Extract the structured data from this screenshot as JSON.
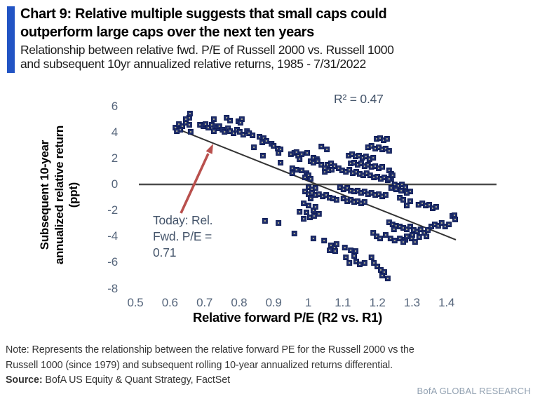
{
  "header": {
    "title_line1": "Chart 9: Relative multiple suggests that small caps could",
    "title_line2": "outperform large caps over the next ten years",
    "subtitle_line1": "Relationship between relative fwd. P/E of Russell 2000 vs. Russell 1000",
    "subtitle_line2": "and subsequent 10yr annualized relative returns, 1985 - 7/31/2022",
    "accent_color": "#2254c4"
  },
  "chart_data": {
    "type": "scatter",
    "xlabel": "Relative forward P/E (R2 vs. R1)",
    "ylabel": "Subsequent 10-year annualized relative return (ppt)",
    "ylabel_lines": [
      "Subsequent 10-year",
      "annualized relative return",
      "(ppt)"
    ],
    "x_ticks": [
      0.5,
      0.6,
      0.7,
      0.8,
      0.9,
      1,
      1.1,
      1.2,
      1.3,
      1.4
    ],
    "x_tick_labels": [
      "0.5",
      "0.6",
      "0.7",
      "0.8",
      "0.9",
      "1",
      "1.1",
      "1.2",
      "1.3",
      "1.4"
    ],
    "y_ticks": [
      6,
      4,
      2,
      0,
      -2,
      -4,
      -6,
      -8
    ],
    "xlim": [
      0.49,
      1.55
    ],
    "ylim": [
      -8.3,
      6.6
    ],
    "grid": false,
    "zero_line": true,
    "r_squared": 0.47,
    "r_squared_label": "R² = 0.47",
    "annotation": {
      "lines": [
        "Today: Rel.",
        "Fwd. P/E =",
        "0.71"
      ],
      "value": 0.71,
      "arrow_color": "#b9504d"
    },
    "trendline": {
      "x1": 0.612,
      "y1": 4.36,
      "x2": 1.427,
      "y2": -4.25
    },
    "marker": {
      "shape": "square",
      "color": "#1f2e6e",
      "edge_color": "#0f1d55"
    },
    "points": [
      [
        0.616,
        4.36
      ],
      [
        0.626,
        4.63
      ],
      [
        0.636,
        4.47
      ],
      [
        0.646,
        4.74
      ],
      [
        0.656,
        4.58
      ],
      [
        0.63,
        4.2
      ],
      [
        0.62,
        4.09
      ],
      [
        0.656,
        5.12
      ],
      [
        0.646,
        5.01
      ],
      [
        0.66,
        4.04
      ],
      [
        0.687,
        4.58
      ],
      [
        0.697,
        4.47
      ],
      [
        0.703,
        4.63
      ],
      [
        0.711,
        4.36
      ],
      [
        0.721,
        4.58
      ],
      [
        0.731,
        4.47
      ],
      [
        0.737,
        4.31
      ],
      [
        0.727,
        4.09
      ],
      [
        0.743,
        4.47
      ],
      [
        0.752,
        4.2
      ],
      [
        0.758,
        4.04
      ],
      [
        0.768,
        4.31
      ],
      [
        0.774,
        4.09
      ],
      [
        0.784,
        3.93
      ],
      [
        0.794,
        4.2
      ],
      [
        0.802,
        4.04
      ],
      [
        0.812,
        3.82
      ],
      [
        0.823,
        4.09
      ],
      [
        0.829,
        3.93
      ],
      [
        0.839,
        3.77
      ],
      [
        0.764,
        5.12
      ],
      [
        0.774,
        4.9
      ],
      [
        0.798,
        4.85
      ],
      [
        0.808,
        5.01
      ],
      [
        0.658,
        5.44
      ],
      [
        0.727,
        5.01
      ],
      [
        0.804,
        4.74
      ],
      [
        0.859,
        3.66
      ],
      [
        0.871,
        3.55
      ],
      [
        0.843,
        2.85
      ],
      [
        0.867,
        3.23
      ],
      [
        0.879,
        3.34
      ],
      [
        0.894,
        3.12
      ],
      [
        0.869,
        2.21
      ],
      [
        0.9,
        2.96
      ],
      [
        0.912,
        2.75
      ],
      [
        0.92,
        1.67
      ],
      [
        0.914,
        2.42
      ],
      [
        0.95,
        2.32
      ],
      [
        0.96,
        2.42
      ],
      [
        0.971,
        2.21
      ],
      [
        0.981,
        2.32
      ],
      [
        0.954,
        1.24
      ],
      [
        0.966,
        1.13
      ],
      [
        0.981,
        1.08
      ],
      [
        0.995,
        0.86
      ],
      [
        0.954,
        0.86
      ],
      [
        0.991,
        0.54
      ],
      [
        1.001,
        0.7
      ],
      [
        1.007,
        1.78
      ],
      [
        1.015,
        2.05
      ],
      [
        1.025,
        1.94
      ],
      [
        1.007,
        0.43
      ],
      [
        1.015,
        1.67
      ],
      [
        1.027,
        1.78
      ],
      [
        1.038,
        1.51
      ],
      [
        1.048,
        0.97
      ],
      [
        0.997,
        2.42
      ],
      [
        0.975,
        1.94
      ],
      [
        0.966,
        2.48
      ],
      [
        1.038,
        2.91
      ],
      [
        1.054,
        2.69
      ],
      [
        0.92,
        2.69
      ],
      [
        1.056,
        1.51
      ],
      [
        1.066,
        1.62
      ],
      [
        1.076,
        1.4
      ],
      [
        1.068,
        1.13
      ],
      [
        1.058,
        1.08
      ],
      [
        1.048,
        1.24
      ],
      [
        1.088,
        1.24
      ],
      [
        1.098,
        1.08
      ],
      [
        1.109,
        0.97
      ],
      [
        1.119,
        1.13
      ],
      [
        1.129,
        0.86
      ],
      [
        1.139,
        0.97
      ],
      [
        1.149,
        0.81
      ],
      [
        1.159,
        0.7
      ],
      [
        1.169,
        0.86
      ],
      [
        1.179,
        0.7
      ],
      [
        1.19,
        0.54
      ],
      [
        1.2,
        0.59
      ],
      [
        1.21,
        0.43
      ],
      [
        1.22,
        0.54
      ],
      [
        1.23,
        0.32
      ],
      [
        1.24,
        0.43
      ],
      [
        1.123,
        1.62
      ],
      [
        1.133,
        1.67
      ],
      [
        1.143,
        1.51
      ],
      [
        1.153,
        1.62
      ],
      [
        1.163,
        1.4
      ],
      [
        1.173,
        1.51
      ],
      [
        1.183,
        1.35
      ],
      [
        1.194,
        1.4
      ],
      [
        1.204,
        1.24
      ],
      [
        1.214,
        1.35
      ],
      [
        1.117,
        2.21
      ],
      [
        1.127,
        2.32
      ],
      [
        1.137,
        2.15
      ],
      [
        1.147,
        2.21
      ],
      [
        1.157,
        2.05
      ],
      [
        1.167,
        2.15
      ],
      [
        1.177,
        1.94
      ],
      [
        1.188,
        2.05
      ],
      [
        1.173,
        2.85
      ],
      [
        1.183,
        2.96
      ],
      [
        1.194,
        2.75
      ],
      [
        1.204,
        2.85
      ],
      [
        1.214,
        2.69
      ],
      [
        1.224,
        2.75
      ],
      [
        1.234,
        2.58
      ],
      [
        1.198,
        3.5
      ],
      [
        1.208,
        3.55
      ],
      [
        1.218,
        3.39
      ],
      [
        1.228,
        3.5
      ],
      [
        1.234,
        1.08
      ],
      [
        1.24,
        0.81
      ],
      [
        1.234,
        0.43
      ],
      [
        1.244,
        0.7
      ],
      [
        1.092,
        -0.22
      ],
      [
        1.102,
        -0.38
      ],
      [
        1.113,
        -0.27
      ],
      [
        1.123,
        -0.48
      ],
      [
        1.133,
        -0.54
      ],
      [
        1.143,
        -0.48
      ],
      [
        1.153,
        -0.65
      ],
      [
        1.163,
        -0.54
      ],
      [
        1.173,
        -0.75
      ],
      [
        1.183,
        -0.65
      ],
      [
        1.194,
        -0.81
      ],
      [
        1.204,
        -0.75
      ],
      [
        1.214,
        -0.92
      ],
      [
        1.224,
        -0.81
      ],
      [
        1.102,
        -1.08
      ],
      [
        1.113,
        -1.29
      ],
      [
        1.123,
        -1.18
      ],
      [
        1.133,
        -1.35
      ],
      [
        1.143,
        -1.29
      ],
      [
        1.153,
        -1.45
      ],
      [
        1.163,
        -1.35
      ],
      [
        1.001,
        -0.22
      ],
      [
        1.011,
        -0.38
      ],
      [
        1.021,
        -0.27
      ],
      [
        0.991,
        -0.54
      ],
      [
        1.001,
        -0.75
      ],
      [
        1.011,
        -0.65
      ],
      [
        1.021,
        -0.81
      ],
      [
        1.031,
        -0.75
      ],
      [
        1.042,
        -0.92
      ],
      [
        1.052,
        -0.81
      ],
      [
        1.062,
        -1.02
      ],
      [
        1.072,
        -1.08
      ],
      [
        1.082,
        -1.18
      ],
      [
        1.25,
        0.0
      ],
      [
        1.261,
        -0.11
      ],
      [
        1.271,
        0.0
      ],
      [
        1.281,
        -0.22
      ],
      [
        1.269,
        -0.48
      ],
      [
        1.254,
        -0.38
      ],
      [
        1.24,
        -0.27
      ],
      [
        1.295,
        -0.54
      ],
      [
        1.285,
        -0.65
      ],
      [
        1.265,
        -1.02
      ],
      [
        1.275,
        -1.18
      ],
      [
        1.295,
        -1.29
      ],
      [
        1.285,
        -1.62
      ],
      [
        1.007,
        -1.08
      ],
      [
        0.987,
        -1.45
      ],
      [
        1.001,
        -1.62
      ],
      [
        1.015,
        -1.99
      ],
      [
        0.995,
        -2.15
      ],
      [
        0.975,
        -2.1
      ],
      [
        1.005,
        -2.53
      ],
      [
        0.987,
        -2.64
      ],
      [
        1.017,
        -2.42
      ],
      [
        1.031,
        -2.26
      ],
      [
        1.021,
        -1.72
      ],
      [
        1.319,
        -1.56
      ],
      [
        1.33,
        -1.45
      ],
      [
        1.34,
        -1.62
      ],
      [
        1.35,
        -1.56
      ],
      [
        1.36,
        -1.83
      ],
      [
        1.37,
        -1.72
      ],
      [
        1.234,
        -2.91
      ],
      [
        1.244,
        -3.07
      ],
      [
        1.254,
        -3.18
      ],
      [
        1.265,
        -3.23
      ],
      [
        1.248,
        -3.45
      ],
      [
        1.275,
        -3.34
      ],
      [
        1.285,
        -3.45
      ],
      [
        1.295,
        -3.23
      ],
      [
        1.305,
        -3.5
      ],
      [
        1.315,
        -3.61
      ],
      [
        1.325,
        -3.45
      ],
      [
        1.336,
        -3.72
      ],
      [
        1.346,
        -3.5
      ],
      [
        1.356,
        -3.23
      ],
      [
        1.366,
        -3.07
      ],
      [
        1.376,
        -3.18
      ],
      [
        1.386,
        -2.96
      ],
      [
        1.396,
        -3.23
      ],
      [
        1.407,
        -3.07
      ],
      [
        1.417,
        -2.42
      ],
      [
        1.423,
        -2.37
      ],
      [
        1.425,
        -2.69
      ],
      [
        1.301,
        -3.88
      ],
      [
        1.321,
        -4.04
      ],
      [
        1.342,
        -3.99
      ],
      [
        1.265,
        -4.15
      ],
      [
        1.281,
        -4.25
      ],
      [
        1.188,
        -3.72
      ],
      [
        1.198,
        -3.99
      ],
      [
        1.208,
        -4.15
      ],
      [
        1.224,
        -3.88
      ],
      [
        1.238,
        -4.15
      ],
      [
        1.25,
        -4.31
      ],
      [
        1.275,
        -4.42
      ],
      [
        1.285,
        -3.99
      ],
      [
        1.299,
        -4.15
      ],
      [
        1.309,
        -4.42
      ],
      [
        1.046,
        -4.31
      ],
      [
        1.066,
        -4.68
      ],
      [
        1.076,
        -4.85
      ],
      [
        1.082,
        -4.58
      ],
      [
        1.106,
        -4.85
      ],
      [
        1.123,
        -5.06
      ],
      [
        1.133,
        -5.49
      ],
      [
        1.109,
        -5.6
      ],
      [
        1.139,
        -5.92
      ],
      [
        1.119,
        -6.03
      ],
      [
        1.149,
        -6.14
      ],
      [
        1.163,
        -6.03
      ],
      [
        1.183,
        -5.6
      ],
      [
        1.19,
        -6.03
      ],
      [
        1.2,
        -6.3
      ],
      [
        1.21,
        -6.57
      ],
      [
        1.22,
        -6.73
      ],
      [
        1.23,
        -7.22
      ],
      [
        1.214,
        -7.0
      ],
      [
        1.062,
        -5.06
      ],
      [
        1.078,
        -5.12
      ],
      [
        1.137,
        -5.12
      ],
      [
        0.914,
        -2.96
      ],
      [
        0.96,
        -3.77
      ],
      [
        1.015,
        -4.15
      ],
      [
        0.875,
        -2.8
      ]
    ]
  },
  "note": {
    "line1": "Note: Represents  the  relationship  between  the relative forward PE for  the  Russell 2000 vs the",
    "line2": "Russell  1000 (since  1979)  and subsequent   rolling 10-year annualized  returns differential.",
    "source_label": "Source:",
    "source_text": "BofA US Equity  & Quant  Strategy, FactSet"
  },
  "footer": {
    "brand": "BofA GLOBAL RESEARCH"
  }
}
